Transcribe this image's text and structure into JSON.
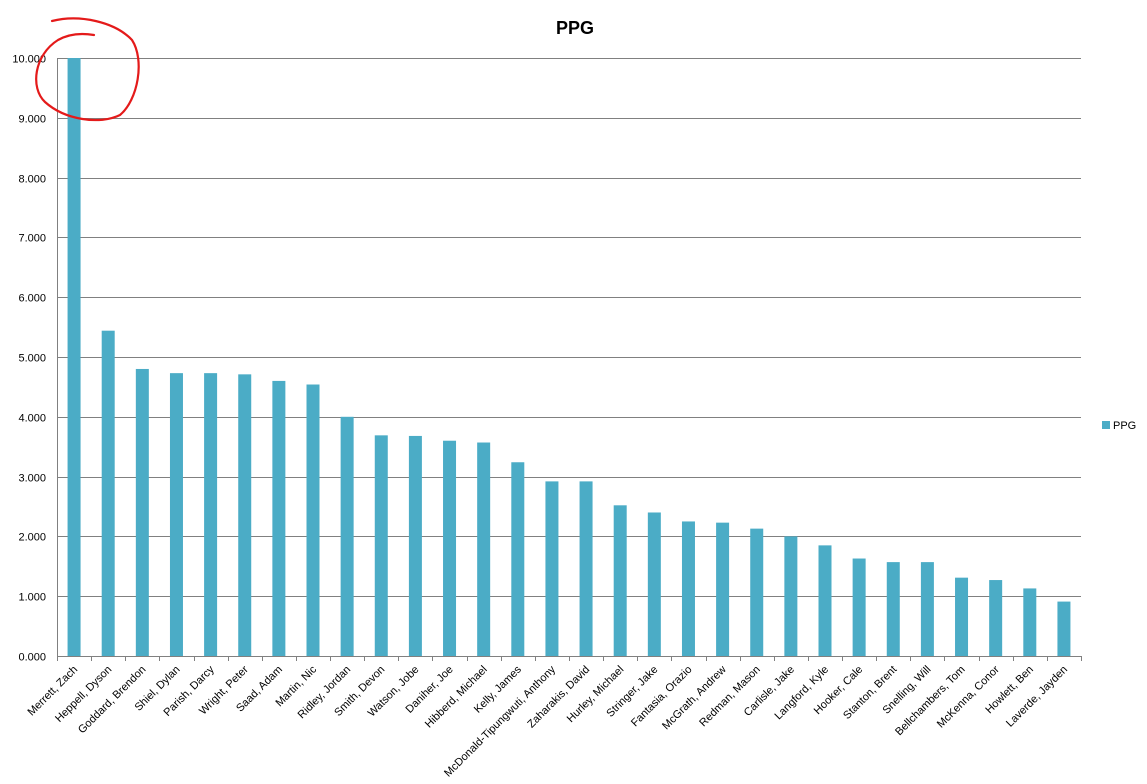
{
  "chart_data": {
    "type": "bar",
    "title": "PPG",
    "xlabel": "",
    "ylabel": "",
    "ylim": [
      0,
      10
    ],
    "ytick_step": 1,
    "ytick_format_decimals": 3,
    "grid": true,
    "legend_position": "right",
    "colors": {
      "bar": "#4BACC6",
      "grid": "#808080",
      "axis": "#808080",
      "annotation": "#E41A1A"
    },
    "categories": [
      "Merrett, Zach",
      "Heppell, Dyson",
      "Goddard, Brendon",
      "Shiel, Dylan",
      "Parish, Darcy",
      "Wright, Peter",
      "Saad, Adam",
      "Martin, Nic",
      "Ridley, Jordan",
      "Smith, Devon",
      "Watson, Jobe",
      "Daniher, Joe",
      "Hibberd, Michael",
      "Kelly, James",
      "McDonald-Tipungwuti, Anthony",
      "Zaharakis, David",
      "Hurley, Michael",
      "Stringer, Jake",
      "Fantasia, Orazio",
      "McGrath, Andrew",
      "Redman, Mason",
      "Carlisle, Jake",
      "Langford, Kyle",
      "Hooker, Cale",
      "Stanton, Brent",
      "Snelling, Will",
      "Bellchambers, Tom",
      "McKenna, Conor",
      "Howlett, Ben",
      "Laverde, Jayden"
    ],
    "series": [
      {
        "name": "PPG",
        "values": [
          10.0,
          5.44,
          4.8,
          4.73,
          4.73,
          4.71,
          4.6,
          4.54,
          4.0,
          3.69,
          3.68,
          3.6,
          3.57,
          3.24,
          2.92,
          2.92,
          2.52,
          2.4,
          2.25,
          2.23,
          2.13,
          2.0,
          1.85,
          1.63,
          1.57,
          1.57,
          1.31,
          1.27,
          1.13,
          0.91
        ]
      }
    ]
  }
}
